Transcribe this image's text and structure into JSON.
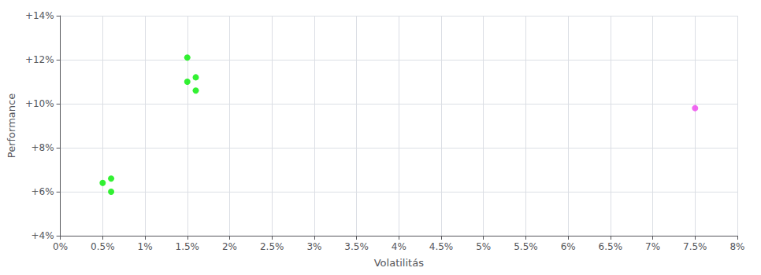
{
  "chart_data": {
    "type": "scatter",
    "xlabel": "Volatilitás",
    "ylabel": "Performance",
    "xlim": [
      0.0,
      0.08
    ],
    "ylim": [
      0.04,
      0.14
    ],
    "xticks": [
      {
        "value": 0.0,
        "label": "0%"
      },
      {
        "value": 0.005,
        "label": "0.5%"
      },
      {
        "value": 0.01,
        "label": "1%"
      },
      {
        "value": 0.015,
        "label": "1.5%"
      },
      {
        "value": 0.02,
        "label": "2%"
      },
      {
        "value": 0.025,
        "label": "2.5%"
      },
      {
        "value": 0.03,
        "label": "3%"
      },
      {
        "value": 0.035,
        "label": "3.5%"
      },
      {
        "value": 0.04,
        "label": "4%"
      },
      {
        "value": 0.045,
        "label": "4.5%"
      },
      {
        "value": 0.05,
        "label": "5%"
      },
      {
        "value": 0.055,
        "label": "5.5%"
      },
      {
        "value": 0.06,
        "label": "6%"
      },
      {
        "value": 0.065,
        "label": "6.5%"
      },
      {
        "value": 0.07,
        "label": "7%"
      },
      {
        "value": 0.075,
        "label": "7.5%"
      },
      {
        "value": 0.08,
        "label": "8%"
      }
    ],
    "yticks": [
      {
        "value": 0.04,
        "label": "+4%"
      },
      {
        "value": 0.06,
        "label": "+6%"
      },
      {
        "value": 0.08,
        "label": "+8%"
      },
      {
        "value": 0.1,
        "label": "+10%"
      },
      {
        "value": 0.12,
        "label": "+12%"
      },
      {
        "value": 0.14,
        "label": "+14%"
      }
    ],
    "grid": true,
    "marker": "circle",
    "series": [
      {
        "color": "#00ee00",
        "x": [
          0.005,
          0.006,
          0.006,
          0.015,
          0.016,
          0.016,
          0.015
        ],
        "values": [
          0.064,
          0.066,
          0.06,
          0.121,
          0.112,
          0.106,
          0.11
        ]
      },
      {
        "color": "#ee44ee",
        "x": [
          0.075
        ],
        "values": [
          0.098
        ]
      }
    ]
  }
}
